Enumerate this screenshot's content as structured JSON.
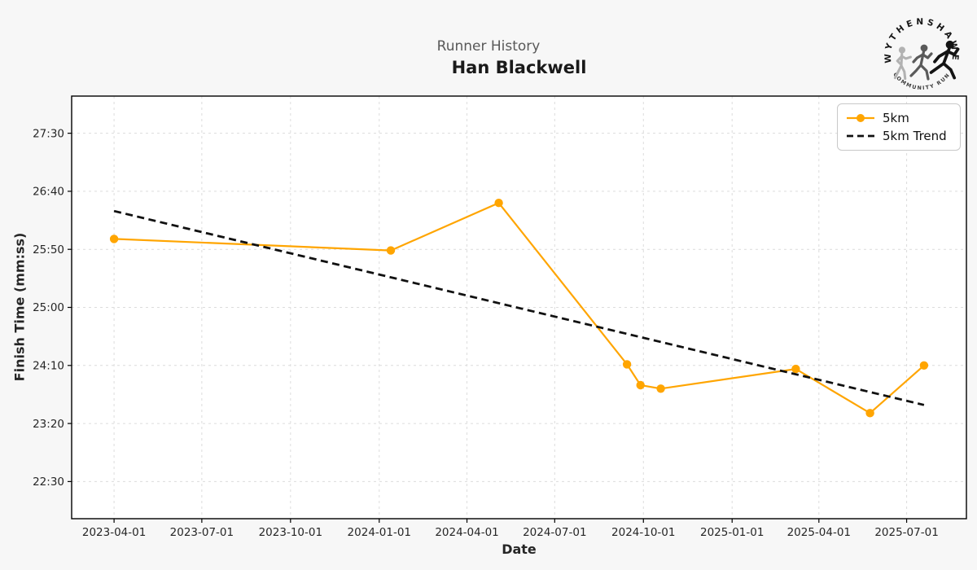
{
  "figure": {
    "background": "#f7f7f7"
  },
  "header": {
    "suptitle": "Runner History",
    "title": "Han Blackwell"
  },
  "logo": {
    "top_text": "WYTHENSHAWE",
    "bottom_text": "COMMUNITY RUN"
  },
  "chart_data": {
    "type": "line",
    "suptitle": "Runner History",
    "title": "Han Blackwell",
    "xlabel": "Date",
    "ylabel": "Finish Time (mm:ss)",
    "grid": true,
    "legend_position": "upper-right",
    "xlim": [
      "2023-02-16",
      "2025-09-01"
    ],
    "ylim": [
      "21:58",
      "28:02"
    ],
    "x_ticks": [
      "2023-04-01",
      "2023-07-01",
      "2023-10-01",
      "2024-01-01",
      "2024-04-01",
      "2024-07-01",
      "2024-10-01",
      "2025-01-01",
      "2025-04-01",
      "2025-07-01"
    ],
    "y_ticks": [
      "22:30",
      "23:20",
      "24:10",
      "25:00",
      "25:50",
      "26:40",
      "27:30"
    ],
    "colors": {
      "plot_background": "#ffffff",
      "grid": "#dcdcdc",
      "spine": "#000000",
      "tick_label": "#262626",
      "accent": "#FFA500"
    },
    "series": [
      {
        "name": "5km",
        "color": "#FFA500",
        "style": "solid",
        "marker": "circle",
        "points": [
          {
            "date": "2023-04-01",
            "time": "25:59"
          },
          {
            "date": "2024-01-13",
            "time": "25:49"
          },
          {
            "date": "2024-05-04",
            "time": "26:30"
          },
          {
            "date": "2024-09-14",
            "time": "24:11"
          },
          {
            "date": "2024-09-28",
            "time": "23:53"
          },
          {
            "date": "2024-10-19",
            "time": "23:50"
          },
          {
            "date": "2025-03-08",
            "time": "24:07"
          },
          {
            "date": "2025-05-24",
            "time": "23:29"
          },
          {
            "date": "2025-07-19",
            "time": "24:10"
          }
        ]
      },
      {
        "name": "5km Trend",
        "color": "#111111",
        "style": "dashed",
        "marker": "none",
        "points": [
          {
            "date": "2023-04-01",
            "time": "26:23"
          },
          {
            "date": "2025-07-19",
            "time": "23:36"
          }
        ]
      }
    ]
  }
}
